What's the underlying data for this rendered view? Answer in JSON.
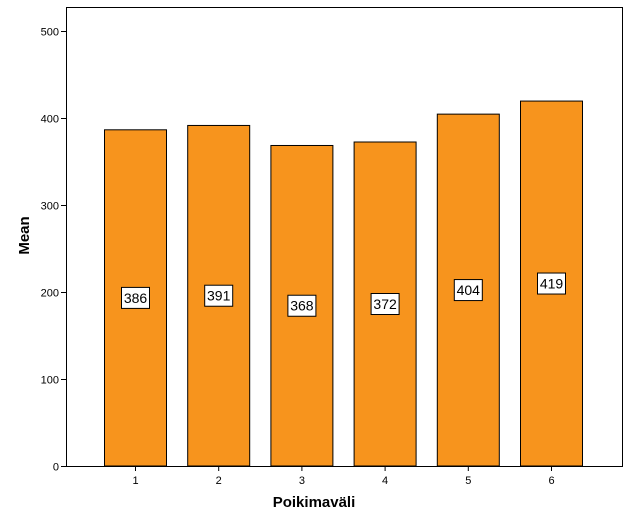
{
  "chart_data": {
    "type": "bar",
    "title": "",
    "xlabel": "Poikimaväli",
    "ylabel": "Mean",
    "categories": [
      "1",
      "2",
      "3",
      "4",
      "5",
      "6"
    ],
    "values": [
      386,
      391,
      368,
      372,
      404,
      419
    ],
    "data_labels": [
      "386",
      "391",
      "368",
      "372",
      "404",
      "419"
    ],
    "ylim": [
      0,
      527
    ],
    "yticks": [
      0,
      100,
      200,
      300,
      400,
      500
    ],
    "ytick_labels": [
      "0",
      "100",
      "200",
      "300",
      "400",
      "500"
    ],
    "grid": false,
    "legend": "none",
    "bar_color": "#F7941D",
    "bar_edge_color": "#000000",
    "label_box_color": "#ffffff"
  }
}
